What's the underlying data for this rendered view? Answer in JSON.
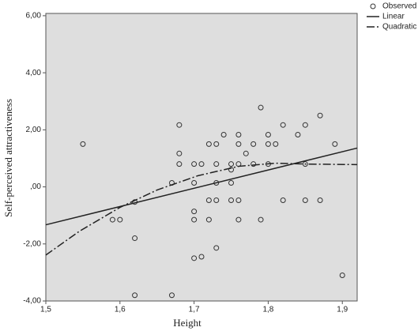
{
  "chart_data": {
    "type": "scatter",
    "x_label": "Height",
    "y_label": "Self-perceived attractiveness",
    "xlim": [
      1.5,
      1.92
    ],
    "ylim": [
      -4,
      6.08
    ],
    "xticks": [
      {
        "value": 1.5,
        "label": "1,5"
      },
      {
        "value": 1.6,
        "label": "1,6"
      },
      {
        "value": 1.7,
        "label": "1,7"
      },
      {
        "value": 1.8,
        "label": "1,8"
      },
      {
        "value": 1.9,
        "label": "1,9"
      }
    ],
    "yticks": [
      {
        "value": -4,
        "label": "-4,00"
      },
      {
        "value": -2,
        "label": "-2,00"
      },
      {
        "value": 0,
        "label": ",00"
      },
      {
        "value": 2,
        "label": "2,00"
      },
      {
        "value": 4,
        "label": "4,00"
      },
      {
        "value": 6,
        "label": "6,00"
      }
    ],
    "legend": "top-right",
    "background": "#dedede",
    "series": [
      {
        "name": "Observed",
        "style": "markers",
        "color": "#333333",
        "x": [
          1.55,
          1.59,
          1.6,
          1.62,
          1.62,
          1.62,
          1.67,
          1.67,
          1.68,
          1.68,
          1.68,
          1.7,
          1.7,
          1.7,
          1.7,
          1.7,
          1.71,
          1.71,
          1.72,
          1.72,
          1.72,
          1.73,
          1.73,
          1.73,
          1.73,
          1.73,
          1.74,
          1.75,
          1.75,
          1.75,
          1.75,
          1.76,
          1.76,
          1.76,
          1.76,
          1.76,
          1.77,
          1.78,
          1.78,
          1.79,
          1.79,
          1.8,
          1.8,
          1.8,
          1.81,
          1.82,
          1.82,
          1.84,
          1.85,
          1.85,
          1.85,
          1.87,
          1.87,
          1.89,
          1.9
        ],
        "values": [
          1.5,
          -1.15,
          -1.15,
          -0.53,
          -1.8,
          -3.8,
          0.14,
          -3.8,
          2.17,
          1.17,
          0.8,
          0.8,
          0.14,
          -0.86,
          -1.15,
          -2.5,
          -2.45,
          0.8,
          1.5,
          -0.47,
          -1.15,
          1.5,
          0.8,
          0.14,
          -0.47,
          -2.14,
          1.83,
          0.8,
          0.6,
          0.14,
          -0.47,
          1.83,
          1.5,
          0.8,
          -0.47,
          -1.15,
          1.17,
          1.5,
          0.8,
          2.78,
          -1.15,
          1.83,
          1.5,
          0.8,
          1.5,
          2.17,
          -0.47,
          1.83,
          2.17,
          0.8,
          -0.47,
          2.5,
          -0.47,
          1.5,
          -3.1
        ]
      },
      {
        "name": "Linear",
        "style": "solid",
        "color": "#222222",
        "x": [
          1.5,
          1.92
        ],
        "values": [
          -1.33,
          1.36
        ]
      },
      {
        "name": "Quadratic",
        "style": "dashdot",
        "color": "#222222",
        "x": [
          1.5,
          1.545,
          1.6,
          1.65,
          1.705,
          1.76,
          1.81,
          1.85,
          1.92
        ],
        "values": [
          -2.39,
          -1.56,
          -0.72,
          -0.11,
          0.39,
          0.72,
          0.83,
          0.8,
          0.78
        ]
      }
    ]
  }
}
